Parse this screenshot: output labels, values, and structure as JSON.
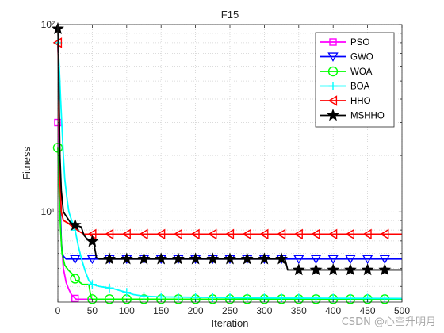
{
  "chart_data": {
    "type": "line",
    "title": "F15",
    "xlabel": "Iteration",
    "ylabel": "Fitness",
    "xlim": [
      0,
      500
    ],
    "ylim": [
      3.3,
      100
    ],
    "yscale": "log",
    "xticks": [
      0,
      50,
      100,
      150,
      200,
      250,
      300,
      350,
      400,
      450,
      500
    ],
    "xtick_labels": [
      "0",
      "50",
      "100",
      "150",
      "200",
      "250",
      "300",
      "350",
      "400",
      "450",
      "500"
    ],
    "yticks": [
      10,
      100
    ],
    "ytick_labels": [
      "10¹",
      "10²"
    ],
    "grid": true,
    "legend_position": "top-right",
    "series": [
      {
        "name": "PSO",
        "color": "#ff00ff",
        "marker": "square",
        "points": [
          [
            0,
            30
          ],
          [
            1,
            30
          ],
          [
            2,
            20
          ],
          [
            3,
            12
          ],
          [
            5,
            7
          ],
          [
            8,
            5
          ],
          [
            12,
            4.2
          ],
          [
            16,
            3.85
          ],
          [
            20,
            3.6
          ],
          [
            23,
            3.52
          ],
          [
            25,
            3.45
          ],
          [
            27,
            3.42
          ],
          [
            500,
            3.42
          ]
        ],
        "marker_x": [
          0,
          25
        ]
      },
      {
        "name": "GWO",
        "color": "#0000ff",
        "marker": "triangle-down",
        "points": [
          [
            0,
            78
          ],
          [
            1,
            60
          ],
          [
            2,
            30
          ],
          [
            3,
            15
          ],
          [
            4,
            9
          ],
          [
            5,
            7
          ],
          [
            6,
            6.2
          ],
          [
            8,
            5.8
          ],
          [
            12,
            5.6
          ],
          [
            500,
            5.6
          ]
        ],
        "marker_x": [
          25,
          50,
          75,
          100,
          125,
          150,
          175,
          200,
          225,
          250,
          275,
          300,
          325,
          350,
          375,
          400,
          425,
          450,
          475
        ]
      },
      {
        "name": "WOA",
        "color": "#00ff00",
        "marker": "circle",
        "points": [
          [
            0,
            22
          ],
          [
            1,
            18
          ],
          [
            2,
            12
          ],
          [
            4,
            8
          ],
          [
            6,
            6
          ],
          [
            10,
            5.2
          ],
          [
            15,
            4.9
          ],
          [
            20,
            4.7
          ],
          [
            24,
            4.5
          ],
          [
            26,
            4.3
          ],
          [
            30,
            4.3
          ],
          [
            32,
            4.2
          ],
          [
            36,
            4.1
          ],
          [
            45,
            4.1
          ],
          [
            47,
            3.7
          ],
          [
            49,
            3.45
          ],
          [
            50,
            3.42
          ],
          [
            500,
            3.42
          ]
        ],
        "marker_x": [
          0,
          25,
          50,
          75,
          100,
          125,
          150,
          175,
          200,
          225,
          250,
          275,
          300,
          325,
          350,
          375,
          400,
          425,
          450,
          475
        ]
      },
      {
        "name": "BOA",
        "color": "#00ffff",
        "marker": "plus",
        "points": [
          [
            0,
            80
          ],
          [
            2,
            60
          ],
          [
            4,
            40
          ],
          [
            6,
            28
          ],
          [
            8,
            20
          ],
          [
            10,
            15
          ],
          [
            13,
            12
          ],
          [
            16,
            10
          ],
          [
            20,
            9
          ],
          [
            25,
            8
          ],
          [
            30,
            6.5
          ],
          [
            35,
            5.5
          ],
          [
            40,
            4.8
          ],
          [
            45,
            4.3
          ],
          [
            50,
            4.1
          ],
          [
            60,
            4
          ],
          [
            70,
            3.95
          ],
          [
            80,
            3.9
          ],
          [
            90,
            3.8
          ],
          [
            100,
            3.72
          ],
          [
            110,
            3.62
          ],
          [
            125,
            3.55
          ],
          [
            150,
            3.52
          ],
          [
            200,
            3.5
          ],
          [
            300,
            3.47
          ],
          [
            400,
            3.46
          ],
          [
            500,
            3.45
          ]
        ],
        "marker_x": [
          0,
          25,
          50,
          75,
          100,
          125,
          150,
          175,
          200,
          225,
          250,
          275,
          300,
          325,
          350,
          375,
          400,
          425,
          450,
          475
        ]
      },
      {
        "name": "HHO",
        "color": "#ff0000",
        "marker": "triangle-left",
        "points": [
          [
            0,
            80
          ],
          [
            1,
            55
          ],
          [
            2,
            25
          ],
          [
            3,
            15
          ],
          [
            5,
            10
          ],
          [
            8,
            9
          ],
          [
            15,
            8.7
          ],
          [
            20,
            8.4
          ],
          [
            25,
            8.2
          ],
          [
            30,
            7.9
          ],
          [
            38,
            7.6
          ],
          [
            500,
            7.6
          ]
        ],
        "marker_x": [
          0,
          50,
          75,
          100,
          125,
          150,
          175,
          200,
          225,
          250,
          275,
          300,
          325,
          350,
          375,
          400,
          425,
          450,
          475
        ]
      },
      {
        "name": "MSHHO",
        "color": "#000000",
        "marker": "star",
        "points": [
          [
            0,
            95
          ],
          [
            1,
            70
          ],
          [
            2,
            35
          ],
          [
            3,
            20
          ],
          [
            5,
            13
          ],
          [
            8,
            10
          ],
          [
            12,
            9.5
          ],
          [
            18,
            8.8
          ],
          [
            25,
            8.5
          ],
          [
            30,
            8.4
          ],
          [
            34,
            8.3
          ],
          [
            38,
            7.5
          ],
          [
            42,
            7.2
          ],
          [
            48,
            7
          ],
          [
            52,
            6.9
          ],
          [
            56,
            5.7
          ],
          [
            60,
            5.6
          ],
          [
            330,
            5.6
          ],
          [
            334,
            4.9
          ],
          [
            500,
            4.9
          ]
        ],
        "marker_x": [
          0,
          25,
          50,
          75,
          100,
          125,
          150,
          175,
          200,
          225,
          250,
          275,
          300,
          325,
          350,
          375,
          400,
          425,
          450,
          475
        ]
      }
    ]
  },
  "watermark": "CSDN @心空升明月"
}
